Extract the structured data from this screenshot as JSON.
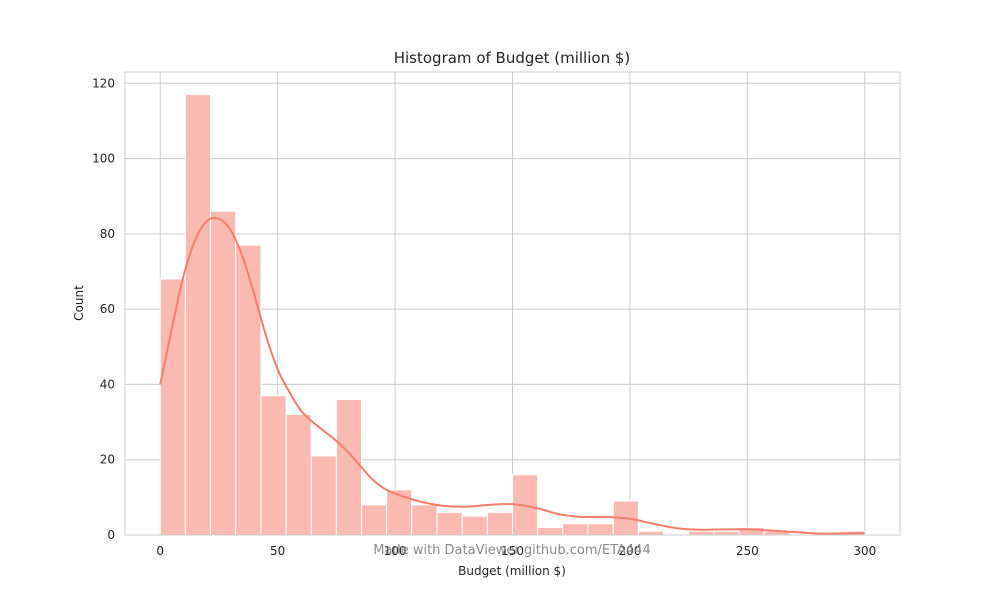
{
  "chart_data": {
    "type": "bar",
    "title": "Histogram of Budget (million $)",
    "xlabel": "Budget (million $)",
    "ylabel": "Count",
    "xlim": [
      -15.0,
      315.0
    ],
    "ylim": [
      0,
      123
    ],
    "xticks": [
      0,
      50,
      100,
      150,
      200,
      250,
      300
    ],
    "yticks": [
      0,
      20,
      40,
      60,
      80,
      100,
      120
    ],
    "grid": true,
    "bar_color": "#fabab1",
    "bar_edge_color": "#ffffff",
    "kde_color": "#f47d6b",
    "bins": [
      {
        "x0": 0.0,
        "x1": 10.7,
        "count": 68
      },
      {
        "x0": 10.7,
        "x1": 21.4,
        "count": 117
      },
      {
        "x0": 21.4,
        "x1": 32.1,
        "count": 86
      },
      {
        "x0": 32.1,
        "x1": 42.9,
        "count": 77
      },
      {
        "x0": 42.9,
        "x1": 53.6,
        "count": 37
      },
      {
        "x0": 53.6,
        "x1": 64.3,
        "count": 32
      },
      {
        "x0": 64.3,
        "x1": 75.0,
        "count": 21
      },
      {
        "x0": 75.0,
        "x1": 85.7,
        "count": 36
      },
      {
        "x0": 85.7,
        "x1": 96.4,
        "count": 8
      },
      {
        "x0": 96.4,
        "x1": 107.1,
        "count": 12
      },
      {
        "x0": 107.1,
        "x1": 117.9,
        "count": 8
      },
      {
        "x0": 117.9,
        "x1": 128.6,
        "count": 6
      },
      {
        "x0": 128.6,
        "x1": 139.3,
        "count": 5
      },
      {
        "x0": 139.3,
        "x1": 150.0,
        "count": 6
      },
      {
        "x0": 150.0,
        "x1": 160.7,
        "count": 16
      },
      {
        "x0": 160.7,
        "x1": 171.4,
        "count": 2
      },
      {
        "x0": 171.4,
        "x1": 182.1,
        "count": 3
      },
      {
        "x0": 182.1,
        "x1": 192.9,
        "count": 3
      },
      {
        "x0": 192.9,
        "x1": 203.6,
        "count": 9
      },
      {
        "x0": 203.6,
        "x1": 214.3,
        "count": 1
      },
      {
        "x0": 214.3,
        "x1": 225.0,
        "count": 0
      },
      {
        "x0": 225.0,
        "x1": 235.7,
        "count": 1
      },
      {
        "x0": 235.7,
        "x1": 246.4,
        "count": 1
      },
      {
        "x0": 246.4,
        "x1": 257.1,
        "count": 2
      },
      {
        "x0": 257.1,
        "x1": 267.9,
        "count": 1
      },
      {
        "x0": 267.9,
        "x1": 278.6,
        "count": 0
      },
      {
        "x0": 278.6,
        "x1": 289.3,
        "count": 0
      },
      {
        "x0": 289.3,
        "x1": 300.0,
        "count": 1
      }
    ],
    "kde": {
      "x": [
        0,
        5,
        10,
        15,
        20,
        25,
        30,
        35,
        40,
        45,
        50,
        55,
        60,
        65,
        70,
        75,
        80,
        85,
        90,
        95,
        100,
        110,
        120,
        130,
        140,
        150,
        160,
        170,
        180,
        190,
        200,
        210,
        220,
        230,
        240,
        250,
        260,
        270,
        280,
        290,
        300
      ],
      "y": [
        40,
        55,
        69,
        78.5,
        83.5,
        84,
        81,
        74,
        64,
        53,
        44,
        38,
        33,
        30,
        27.5,
        25,
        22,
        18.5,
        15,
        12.5,
        11,
        9,
        7.8,
        7.5,
        8,
        8.2,
        7.2,
        5.5,
        4.8,
        4.8,
        4.3,
        3,
        1.8,
        1.4,
        1.5,
        1.5,
        1.2,
        0.8,
        0.4,
        0.4,
        0.5
      ]
    }
  },
  "watermark": "Made with DataViewer github.com/ETA444"
}
